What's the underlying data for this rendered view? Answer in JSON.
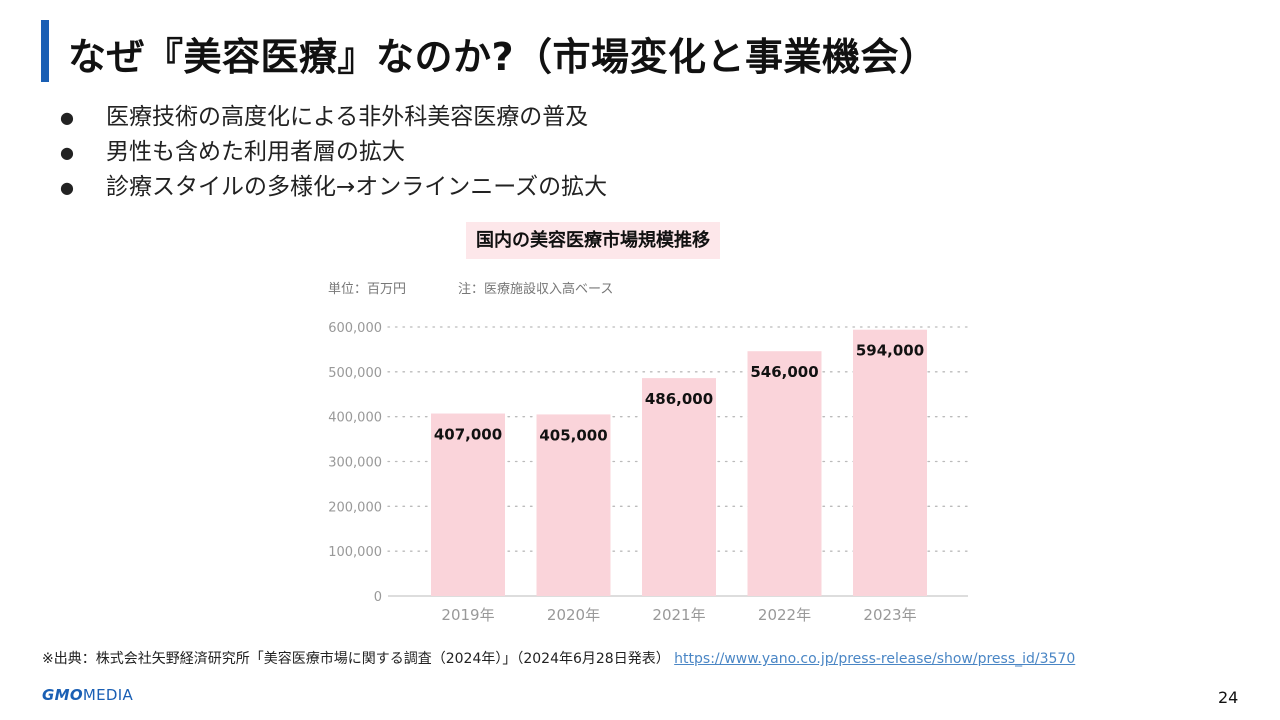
{
  "slide": {
    "title": "なぜ『美容医療』なのか?（市場変化と事業機会）",
    "bullets": [
      "医療技術の高度化による非外科美容医療の普及",
      "男性も含めた利用者層の拡大",
      "診療スタイルの多様化→オンラインニーズの拡大"
    ],
    "bullet_symbol": "●",
    "source_text": "※出典：株式会社矢野経済研究所「美容医療市場に関する調査（2024年）」（2024年6月28日発表）",
    "source_link": "https://www.yano.co.jp/press-release/show/press_id/3570",
    "logo": {
      "gmo": "GMO",
      "media": "MEDIA"
    },
    "page_number": "24"
  },
  "colors": {
    "accent": "#1a5fb4",
    "bar_fill": "#fad4da",
    "title_box": "#fde7ea",
    "grid": "#bbbbbb",
    "axis_text": "#999999",
    "link": "#4a86c5"
  },
  "chart_data": {
    "type": "bar",
    "title": "国内の美容医療市場規模推移",
    "unit_label": "単位：百万円",
    "note": "注：医療施設収入高ベース",
    "categories": [
      "2019年",
      "2020年",
      "2021年",
      "2022年",
      "2023年"
    ],
    "values": [
      407000,
      405000,
      486000,
      546000,
      594000
    ],
    "value_labels": [
      "407,000",
      "405,000",
      "486,000",
      "546,000",
      "594,000"
    ],
    "y_ticks": [
      0,
      100000,
      200000,
      300000,
      400000,
      500000,
      600000
    ],
    "y_tick_labels": [
      "0",
      "100,000",
      "200,000",
      "300,000",
      "400,000",
      "500,000",
      "600,000"
    ],
    "ylim": [
      0,
      600000
    ],
    "grid": true,
    "grid_style": "dotted"
  }
}
